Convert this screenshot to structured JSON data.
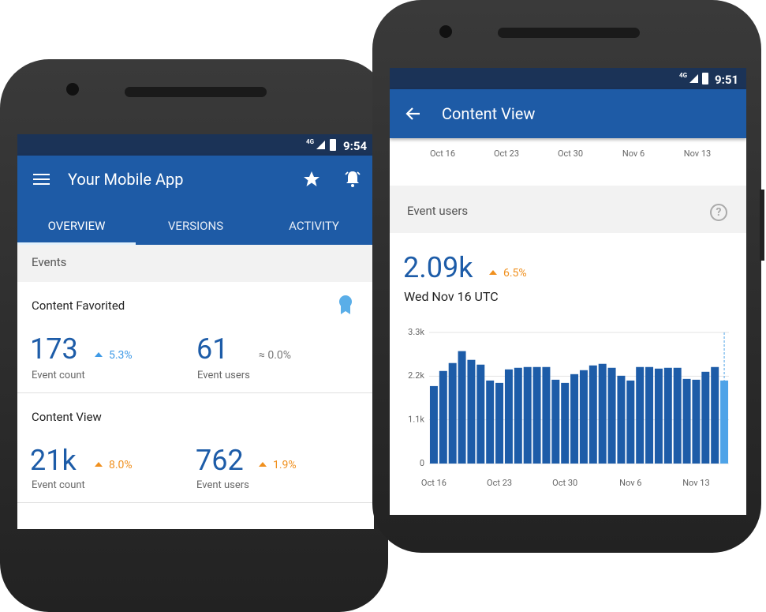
{
  "phones": [
    {
      "status": {
        "network": "4G",
        "time": "9:54"
      },
      "app_bar": {
        "title": "Your Mobile App"
      },
      "tabs": [
        "OVERVIEW",
        "VERSIONS",
        "ACTIVITY"
      ],
      "section": "Events",
      "cards": [
        {
          "title": "Content Favorited",
          "metrics": [
            {
              "value": "173",
              "change": "5.3%",
              "label": "Event count"
            },
            {
              "value": "61",
              "change": "≈ 0.0%",
              "label": "Event users"
            }
          ]
        },
        {
          "title": "Content View",
          "metrics": [
            {
              "value": "21k",
              "change": "8.0%",
              "label": "Event count"
            },
            {
              "value": "762",
              "change": "1.9%",
              "label": "Event users"
            }
          ]
        }
      ]
    },
    {
      "status": {
        "network": "4G",
        "time": "9:51"
      },
      "app_bar": {
        "title": "Content View"
      },
      "previous_axis_labels": [
        "Oct 16",
        "Oct 23",
        "Oct 30",
        "Nov 6",
        "Nov 13"
      ],
      "section": "Event users",
      "metric": {
        "value": "2.09k",
        "change": "6.5%",
        "date": "Wed Nov 16 UTC"
      },
      "chart": {
        "type": "bar",
        "categories": [
          "Oct 16",
          null,
          null,
          null,
          null,
          null,
          null,
          "Oct 23",
          null,
          null,
          null,
          null,
          null,
          null,
          "Oct 30",
          null,
          null,
          null,
          null,
          null,
          null,
          "Nov 6",
          null,
          null,
          null,
          null,
          null,
          null,
          "Nov 13",
          null,
          null,
          null
        ],
        "values": [
          1950,
          2330,
          2530,
          2830,
          2610,
          2490,
          2090,
          2030,
          2370,
          2410,
          2430,
          2430,
          2430,
          2110,
          2030,
          2250,
          2350,
          2470,
          2510,
          2410,
          2210,
          2090,
          2430,
          2430,
          2390,
          2410,
          2410,
          2130,
          2110,
          2310,
          2430,
          2090
        ],
        "color": "#1d5ca8",
        "highlight_color": "#4ea3e8",
        "ylim": [
          0,
          3300
        ],
        "yticks": [
          0,
          {
            "value": 1100,
            "label": "1.1k"
          },
          {
            "value": 2200,
            "label": "2.2k"
          },
          {
            "value": 3300,
            "label": "3.3k"
          }
        ],
        "grid": true
      }
    }
  ]
}
